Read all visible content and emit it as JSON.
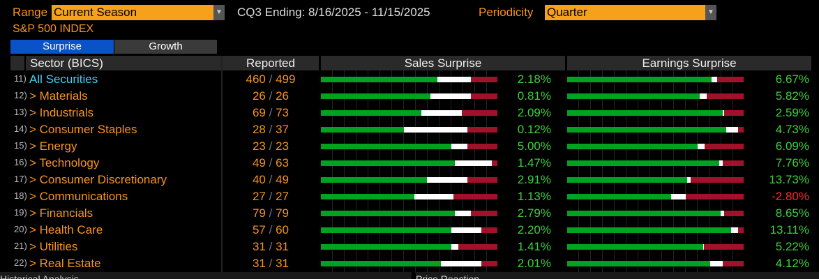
{
  "header": {
    "range_label": "Range",
    "range_value": "Current Season",
    "period_text": "CQ3 Ending: 8/16/2025 - 11/15/2025",
    "periodicity_label": "Periodicity",
    "periodicity_value": "Quarter",
    "index_title": "S&P 500 INDEX"
  },
  "tabs": [
    {
      "label": "Surprise",
      "active": true
    },
    {
      "label": "Growth",
      "active": false
    }
  ],
  "columns": {
    "sector": "Sector (BICS)",
    "reported": "Reported",
    "sales": "Sales Surprise",
    "earnings": "Earnings Surprise"
  },
  "colors": {
    "beat": "#00a321",
    "inline": "#ffffff",
    "miss": "#a0122a",
    "positive": "#3cd23c",
    "negative": "#ff2a2a",
    "accent": "#f7941d",
    "link": "#3fd0f0"
  },
  "rows": [
    {
      "num": "11)",
      "name": "All Securities",
      "reported": "460",
      "total": "499",
      "sales_bar": [
        0.66,
        0.19,
        0.15
      ],
      "sales": "2.18%",
      "earn_bar": [
        0.82,
        0.03,
        0.15
      ],
      "earnings": "6.67%"
    },
    {
      "num": "12)",
      "name": "> Materials",
      "reported": "26",
      "total": "26",
      "sales_bar": [
        0.62,
        0.23,
        0.15
      ],
      "sales": "0.81%",
      "earn_bar": [
        0.75,
        0.04,
        0.21
      ],
      "earnings": "5.82%"
    },
    {
      "num": "13)",
      "name": "> Industrials",
      "reported": "69",
      "total": "73",
      "sales_bar": [
        0.57,
        0.23,
        0.2
      ],
      "sales": "2.09%",
      "earn_bar": [
        0.88,
        0.01,
        0.11
      ],
      "earnings": "2.59%"
    },
    {
      "num": "14)",
      "name": "> Consumer Staples",
      "reported": "28",
      "total": "37",
      "sales_bar": [
        0.47,
        0.36,
        0.17
      ],
      "sales": "0.12%",
      "earn_bar": [
        0.9,
        0.07,
        0.03
      ],
      "earnings": "4.73%"
    },
    {
      "num": "15)",
      "name": "> Energy",
      "reported": "23",
      "total": "23",
      "sales_bar": [
        0.74,
        0.09,
        0.17
      ],
      "sales": "5.00%",
      "earn_bar": [
        0.74,
        0.04,
        0.22
      ],
      "earnings": "6.09%"
    },
    {
      "num": "16)",
      "name": "> Technology",
      "reported": "49",
      "total": "63",
      "sales_bar": [
        0.76,
        0.21,
        0.03
      ],
      "sales": "1.47%",
      "earn_bar": [
        0.86,
        0.02,
        0.12
      ],
      "earnings": "7.76%"
    },
    {
      "num": "17)",
      "name": "> Consumer Discretionary",
      "reported": "40",
      "total": "49",
      "sales_bar": [
        0.6,
        0.23,
        0.17
      ],
      "sales": "2.91%",
      "earn_bar": [
        0.68,
        0.02,
        0.3
      ],
      "earnings": "13.73%"
    },
    {
      "num": "18)",
      "name": "> Communications",
      "reported": "27",
      "total": "27",
      "sales_bar": [
        0.53,
        0.22,
        0.25
      ],
      "sales": "1.13%",
      "earn_bar": [
        0.59,
        0.08,
        0.33
      ],
      "earnings": "-2.80%"
    },
    {
      "num": "19)",
      "name": "> Financials",
      "reported": "79",
      "total": "79",
      "sales_bar": [
        0.76,
        0.09,
        0.15
      ],
      "sales": "2.79%",
      "earn_bar": [
        0.87,
        0.02,
        0.11
      ],
      "earnings": "8.65%"
    },
    {
      "num": "20)",
      "name": "> Health Care",
      "reported": "57",
      "total": "60",
      "sales_bar": [
        0.74,
        0.17,
        0.09
      ],
      "sales": "2.20%",
      "earn_bar": [
        0.93,
        0.04,
        0.03
      ],
      "earnings": "13.11%"
    },
    {
      "num": "21)",
      "name": "> Utilities",
      "reported": "31",
      "total": "31",
      "sales_bar": [
        0.74,
        0.04,
        0.22
      ],
      "sales": "1.41%",
      "earn_bar": [
        0.77,
        0.005,
        0.225
      ],
      "earnings": "5.22%"
    },
    {
      "num": "22)",
      "name": "> Real Estate",
      "reported": "31",
      "total": "31",
      "sales_bar": [
        0.68,
        0.23,
        0.09
      ],
      "sales": "2.01%",
      "earn_bar": [
        0.81,
        0.07,
        0.12
      ],
      "earnings": "4.12%"
    }
  ],
  "footer": {
    "left": "Historical Analysis",
    "right": "Price Reaction"
  }
}
